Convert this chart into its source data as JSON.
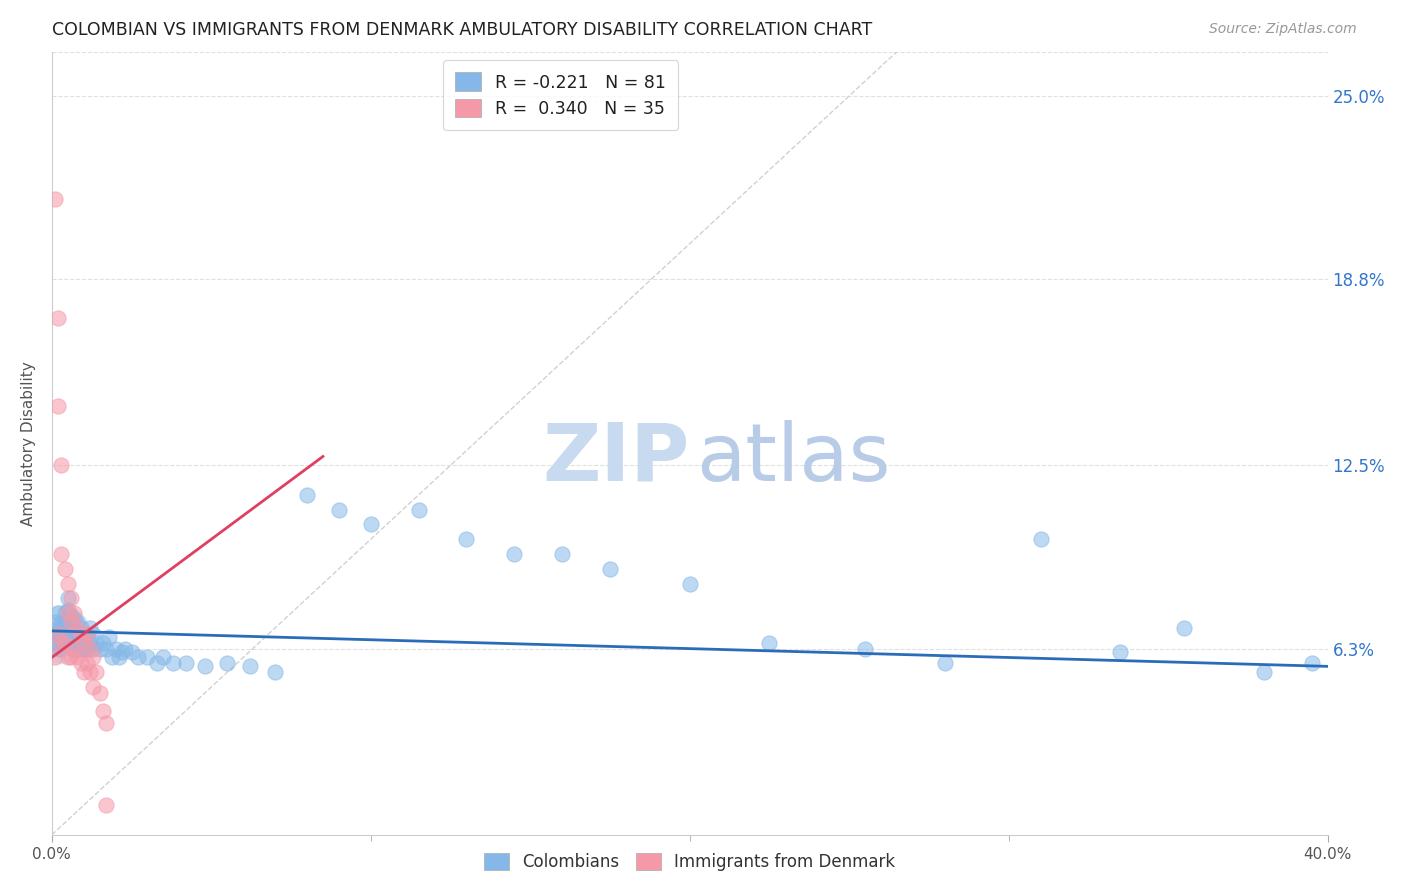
{
  "title": "COLOMBIAN VS IMMIGRANTS FROM DENMARK AMBULATORY DISABILITY CORRELATION CHART",
  "source": "Source: ZipAtlas.com",
  "ylabel": "Ambulatory Disability",
  "ytick_labels": [
    "6.3%",
    "12.5%",
    "18.8%",
    "25.0%"
  ],
  "ytick_values": [
    0.063,
    0.125,
    0.188,
    0.25
  ],
  "xlim": [
    0.0,
    0.4
  ],
  "ylim": [
    0.0,
    0.265
  ],
  "legend_line1": "R = -0.221   N = 81",
  "legend_line2": "R =  0.340   N = 35",
  "colombian_color": "#85b8e8",
  "denmark_color": "#f598a8",
  "colombian_trend_color": "#2b6cb8",
  "denmark_trend_color": "#e04060",
  "diag_color": "#cccccc",
  "background_color": "#ffffff",
  "grid_color": "#e0e0e0",
  "title_color": "#222222",
  "right_tick_color": "#3377cc",
  "colombian_x": [
    0.001,
    0.001,
    0.001,
    0.002,
    0.002,
    0.002,
    0.002,
    0.003,
    0.003,
    0.003,
    0.003,
    0.003,
    0.004,
    0.004,
    0.004,
    0.004,
    0.005,
    0.005,
    0.005,
    0.005,
    0.005,
    0.006,
    0.006,
    0.006,
    0.006,
    0.007,
    0.007,
    0.007,
    0.007,
    0.008,
    0.008,
    0.008,
    0.009,
    0.009,
    0.009,
    0.01,
    0.01,
    0.011,
    0.011,
    0.012,
    0.012,
    0.013,
    0.013,
    0.014,
    0.015,
    0.016,
    0.017,
    0.018,
    0.019,
    0.02,
    0.021,
    0.022,
    0.023,
    0.025,
    0.027,
    0.03,
    0.033,
    0.035,
    0.038,
    0.042,
    0.048,
    0.055,
    0.062,
    0.07,
    0.08,
    0.09,
    0.1,
    0.115,
    0.13,
    0.145,
    0.16,
    0.175,
    0.2,
    0.225,
    0.255,
    0.28,
    0.31,
    0.335,
    0.355,
    0.38,
    0.395
  ],
  "colombian_y": [
    0.072,
    0.068,
    0.065,
    0.075,
    0.07,
    0.068,
    0.063,
    0.072,
    0.07,
    0.067,
    0.065,
    0.063,
    0.075,
    0.072,
    0.068,
    0.065,
    0.08,
    0.076,
    0.072,
    0.068,
    0.065,
    0.074,
    0.071,
    0.068,
    0.065,
    0.073,
    0.07,
    0.067,
    0.063,
    0.072,
    0.068,
    0.063,
    0.07,
    0.067,
    0.063,
    0.068,
    0.063,
    0.067,
    0.063,
    0.07,
    0.065,
    0.068,
    0.063,
    0.065,
    0.063,
    0.065,
    0.063,
    0.067,
    0.06,
    0.063,
    0.06,
    0.062,
    0.063,
    0.062,
    0.06,
    0.06,
    0.058,
    0.06,
    0.058,
    0.058,
    0.057,
    0.058,
    0.057,
    0.055,
    0.115,
    0.11,
    0.105,
    0.11,
    0.1,
    0.095,
    0.095,
    0.09,
    0.085,
    0.065,
    0.063,
    0.058,
    0.1,
    0.062,
    0.07,
    0.055,
    0.058
  ],
  "denmark_x": [
    0.001,
    0.001,
    0.002,
    0.002,
    0.002,
    0.003,
    0.003,
    0.003,
    0.004,
    0.004,
    0.005,
    0.005,
    0.005,
    0.006,
    0.006,
    0.006,
    0.007,
    0.007,
    0.008,
    0.008,
    0.009,
    0.009,
    0.01,
    0.01,
    0.011,
    0.011,
    0.012,
    0.012,
    0.013,
    0.013,
    0.014,
    0.015,
    0.016,
    0.017,
    0.017
  ],
  "denmark_y": [
    0.215,
    0.06,
    0.175,
    0.145,
    0.068,
    0.125,
    0.095,
    0.065,
    0.09,
    0.065,
    0.085,
    0.075,
    0.06,
    0.08,
    0.072,
    0.06,
    0.075,
    0.063,
    0.07,
    0.06,
    0.068,
    0.058,
    0.065,
    0.055,
    0.068,
    0.058,
    0.063,
    0.055,
    0.06,
    0.05,
    0.055,
    0.048,
    0.042,
    0.038,
    0.01
  ]
}
